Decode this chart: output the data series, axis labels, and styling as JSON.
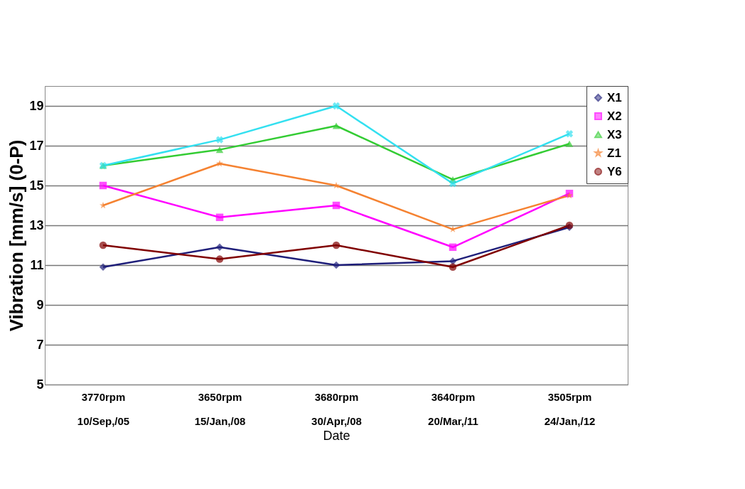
{
  "chart_data": {
    "type": "line",
    "xlabel": "Date",
    "ylabel": "Vibration [mm/s] (0-P)",
    "categories": [
      "3770rpm\n10/Sep,/05",
      "3650rpm\n15/Jan,/08",
      "3680rpm\n30/Apr,/08",
      "3640rpm\n20/Mar,/11",
      "3505rpm\n24/Jan,/12"
    ],
    "series": [
      {
        "name": "X1",
        "color": "#1f1f7a",
        "marker": "diamond",
        "values": [
          10.9,
          11.9,
          11.0,
          11.2,
          12.9
        ]
      },
      {
        "name": "X2",
        "color": "#ff00ff",
        "marker": "square",
        "values": [
          15.0,
          13.4,
          14.0,
          11.9,
          14.6
        ]
      },
      {
        "name": "X3",
        "color": "#33cc33",
        "marker": "triangle",
        "values": [
          16.0,
          16.8,
          18.0,
          15.3,
          17.1
        ]
      },
      {
        "color": "#33e0f0",
        "marker": "cross",
        "values": [
          16.0,
          17.3,
          19.0,
          15.1,
          17.6
        ]
      },
      {
        "name": "Z1",
        "color": "#f58231",
        "marker": "star",
        "values": [
          14.0,
          16.1,
          15.0,
          12.8,
          14.5
        ]
      },
      {
        "name": "Y6",
        "color": "#800000",
        "marker": "circle",
        "values": [
          12.0,
          11.3,
          12.0,
          10.9,
          13.0
        ]
      }
    ],
    "ylim": [
      5,
      20
    ],
    "yticks": [
      5,
      7,
      9,
      11,
      13,
      15,
      17,
      19
    ],
    "grid": "y",
    "legend": "top right",
    "line_style": "solid"
  }
}
